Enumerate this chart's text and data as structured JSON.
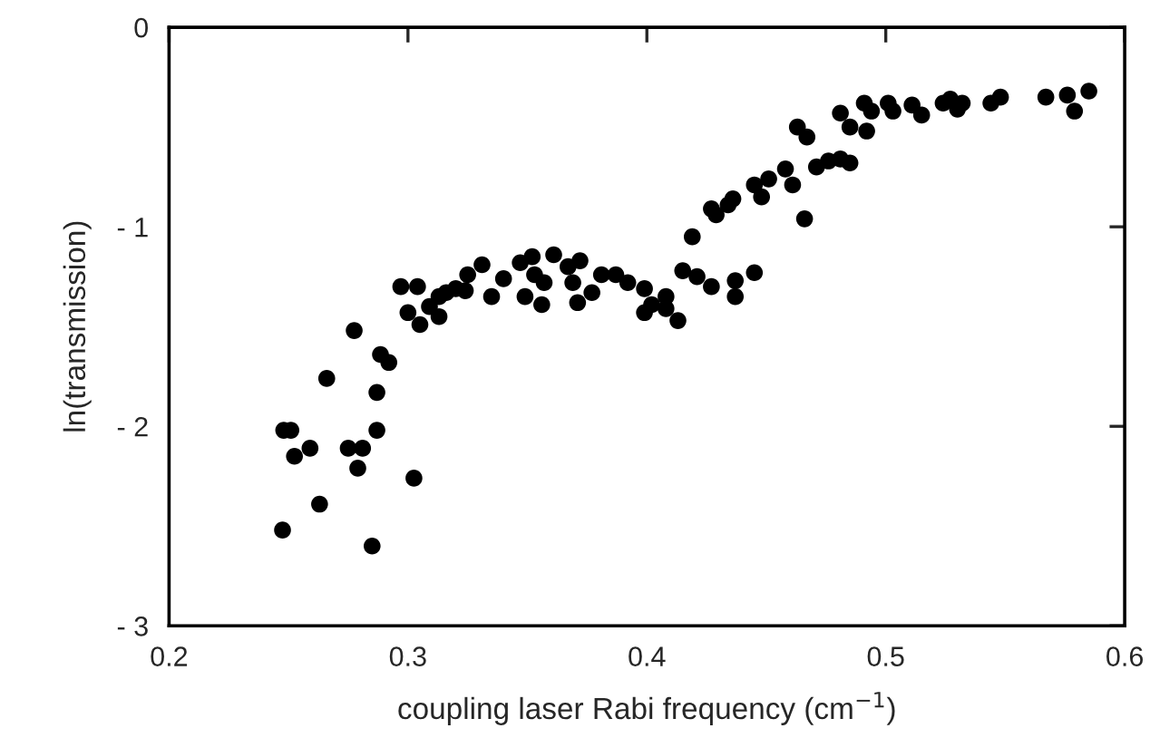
{
  "chart_data": {
    "type": "scatter",
    "xlabel": "coupling laser Rabi frequency (cm$^{−1}$)",
    "ylabel": "ln(transmission)",
    "xlim": [
      0.2,
      0.6
    ],
    "ylim": [
      -3,
      0
    ],
    "xticks": [
      0.2,
      0.3,
      0.4,
      0.5,
      0.6
    ],
    "yticks": [
      {
        "value": 0,
        "label": "0"
      },
      {
        "value": -1,
        "label": "- 1"
      },
      {
        "value": -2,
        "label": "- 2"
      },
      {
        "value": -3,
        "label": "- 3"
      }
    ],
    "marker": "circle",
    "grid": false,
    "legend": false,
    "series": [
      {
        "color": "#000000",
        "x": [
          0.2475,
          0.248,
          0.251,
          0.2525,
          0.259,
          0.263,
          0.266,
          0.275,
          0.281,
          0.279,
          0.2775,
          0.285,
          0.287,
          0.287,
          0.2885,
          0.292,
          0.3025,
          0.297,
          0.304,
          0.3,
          0.305,
          0.309,
          0.313,
          0.313,
          0.316,
          0.32,
          0.324,
          0.325,
          0.331,
          0.335,
          0.34,
          0.347,
          0.352,
          0.361,
          0.349,
          0.356,
          0.357,
          0.353,
          0.367,
          0.372,
          0.369,
          0.371,
          0.377,
          0.381,
          0.387,
          0.392,
          0.399,
          0.399,
          0.402,
          0.408,
          0.408,
          0.413,
          0.415,
          0.421,
          0.427,
          0.419,
          0.427,
          0.429,
          0.434,
          0.436,
          0.445,
          0.448,
          0.451,
          0.437,
          0.437,
          0.445,
          0.458,
          0.461,
          0.466,
          0.463,
          0.467,
          0.471,
          0.476,
          0.481,
          0.485,
          0.481,
          0.485,
          0.492,
          0.491,
          0.494,
          0.501,
          0.503,
          0.511,
          0.515,
          0.524,
          0.527,
          0.532,
          0.53,
          0.544,
          0.548,
          0.567,
          0.576,
          0.579,
          0.585
        ],
        "values": [
          -2.52,
          -2.02,
          -2.02,
          -2.15,
          -2.11,
          -2.39,
          -1.76,
          -2.11,
          -2.11,
          -2.21,
          -1.52,
          -2.6,
          -2.02,
          -1.83,
          -1.64,
          -1.68,
          -2.26,
          -1.3,
          -1.3,
          -1.43,
          -1.49,
          -1.4,
          -1.35,
          -1.45,
          -1.33,
          -1.31,
          -1.32,
          -1.24,
          -1.19,
          -1.35,
          -1.26,
          -1.18,
          -1.15,
          -1.14,
          -1.35,
          -1.39,
          -1.28,
          -1.24,
          -1.2,
          -1.17,
          -1.28,
          -1.38,
          -1.33,
          -1.24,
          -1.24,
          -1.28,
          -1.31,
          -1.43,
          -1.39,
          -1.35,
          -1.41,
          -1.47,
          -1.22,
          -1.25,
          -1.3,
          -1.05,
          -0.91,
          -0.94,
          -0.89,
          -0.86,
          -0.79,
          -0.85,
          -0.76,
          -1.27,
          -1.35,
          -1.23,
          -0.71,
          -0.79,
          -0.96,
          -0.5,
          -0.55,
          -0.7,
          -0.67,
          -0.66,
          -0.68,
          -0.43,
          -0.5,
          -0.52,
          -0.38,
          -0.42,
          -0.38,
          -0.42,
          -0.39,
          -0.44,
          -0.38,
          -0.36,
          -0.38,
          -0.41,
          -0.38,
          -0.35,
          -0.35,
          -0.34,
          -0.42,
          -0.32
        ]
      }
    ]
  }
}
